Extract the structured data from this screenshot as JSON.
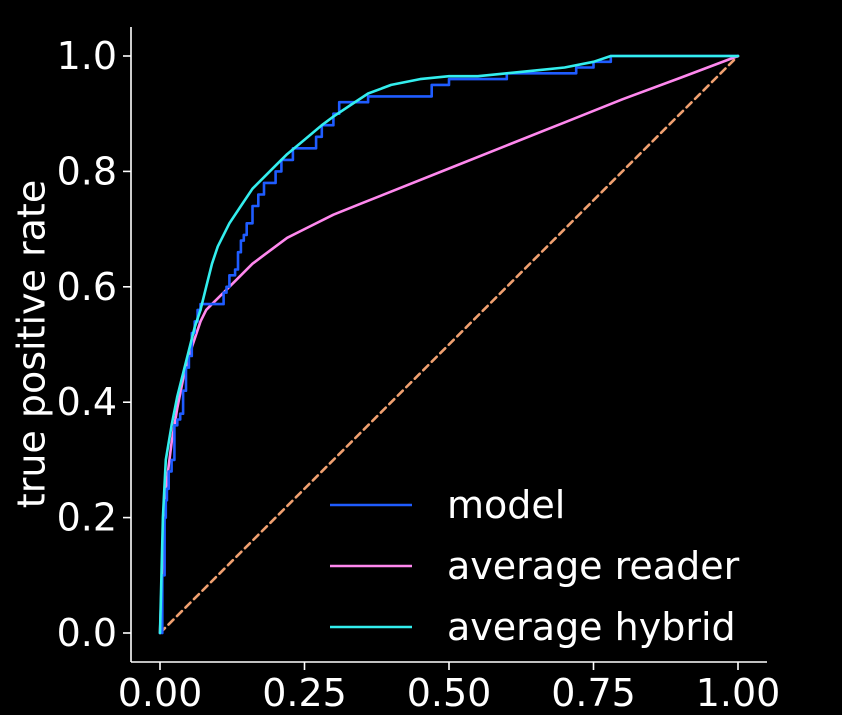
{
  "chart_data": {
    "type": "line",
    "title": "",
    "xlabel": "",
    "ylabel": "true positive rate",
    "xlim": [
      -0.05,
      1.05
    ],
    "ylim": [
      -0.05,
      1.05
    ],
    "xticks": [
      "0.00",
      "0.25",
      "0.50",
      "0.75",
      "1.00"
    ],
    "yticks": [
      "0.0",
      "0.2",
      "0.4",
      "0.6",
      "0.8",
      "1.0"
    ],
    "grid": false,
    "legend": {
      "position": "bottom-right"
    },
    "background": "#000000",
    "series": [
      {
        "name": "model",
        "color": "#1f5cff",
        "style": "step",
        "x": [
          0.0,
          0.004,
          0.008,
          0.01,
          0.012,
          0.015,
          0.02,
          0.025,
          0.03,
          0.035,
          0.04,
          0.045,
          0.05,
          0.055,
          0.06,
          0.065,
          0.07,
          0.075,
          0.08,
          0.09,
          0.1,
          0.11,
          0.115,
          0.12,
          0.13,
          0.135,
          0.14,
          0.145,
          0.15,
          0.16,
          0.17,
          0.18,
          0.2,
          0.21,
          0.23,
          0.25,
          0.27,
          0.28,
          0.3,
          0.31,
          0.33,
          0.35,
          0.36,
          0.38,
          0.4,
          0.43,
          0.47,
          0.5,
          0.55,
          0.6,
          0.65,
          0.7,
          0.72,
          0.75,
          0.78,
          0.85,
          1.0
        ],
        "y": [
          0.0,
          0.1,
          0.2,
          0.23,
          0.25,
          0.28,
          0.3,
          0.36,
          0.37,
          0.38,
          0.42,
          0.46,
          0.48,
          0.52,
          0.54,
          0.56,
          0.57,
          0.57,
          0.57,
          0.57,
          0.57,
          0.59,
          0.6,
          0.62,
          0.63,
          0.66,
          0.68,
          0.69,
          0.71,
          0.74,
          0.76,
          0.78,
          0.8,
          0.82,
          0.84,
          0.84,
          0.86,
          0.88,
          0.9,
          0.92,
          0.92,
          0.92,
          0.93,
          0.93,
          0.93,
          0.93,
          0.95,
          0.96,
          0.96,
          0.97,
          0.97,
          0.97,
          0.98,
          0.99,
          1.0,
          1.0,
          1.0
        ]
      },
      {
        "name": "average reader",
        "color": "#ff88ee",
        "style": "line",
        "x": [
          0.0,
          0.005,
          0.01,
          0.02,
          0.03,
          0.04,
          0.05,
          0.06,
          0.07,
          0.08,
          0.09,
          0.1,
          0.12,
          0.14,
          0.16,
          0.18,
          0.2,
          0.22,
          0.25,
          0.3,
          0.35,
          0.4,
          0.5,
          0.6,
          0.7,
          0.8,
          0.9,
          1.0
        ],
        "y": [
          0.0,
          0.15,
          0.25,
          0.33,
          0.39,
          0.44,
          0.48,
          0.51,
          0.54,
          0.56,
          0.57,
          0.58,
          0.6,
          0.62,
          0.64,
          0.655,
          0.67,
          0.685,
          0.7,
          0.725,
          0.745,
          0.765,
          0.805,
          0.845,
          0.885,
          0.925,
          0.962,
          1.0
        ]
      },
      {
        "name": "average hybrid",
        "color": "#33eeee",
        "style": "line",
        "x": [
          0.0,
          0.005,
          0.01,
          0.02,
          0.03,
          0.04,
          0.05,
          0.06,
          0.07,
          0.08,
          0.09,
          0.1,
          0.12,
          0.14,
          0.16,
          0.18,
          0.2,
          0.22,
          0.25,
          0.28,
          0.3,
          0.33,
          0.36,
          0.4,
          0.45,
          0.5,
          0.55,
          0.6,
          0.65,
          0.7,
          0.75,
          0.78,
          0.8,
          0.9,
          1.0
        ],
        "y": [
          0.0,
          0.2,
          0.3,
          0.36,
          0.41,
          0.45,
          0.49,
          0.53,
          0.56,
          0.6,
          0.64,
          0.67,
          0.71,
          0.74,
          0.77,
          0.79,
          0.81,
          0.83,
          0.855,
          0.88,
          0.895,
          0.915,
          0.935,
          0.95,
          0.96,
          0.965,
          0.965,
          0.97,
          0.975,
          0.98,
          0.99,
          1.0,
          1.0,
          1.0,
          1.0
        ]
      },
      {
        "name": "",
        "color": "#f0a070",
        "style": "dashed",
        "legend": false,
        "x": [
          0.0,
          1.0
        ],
        "y": [
          0.0,
          1.0
        ]
      }
    ]
  }
}
